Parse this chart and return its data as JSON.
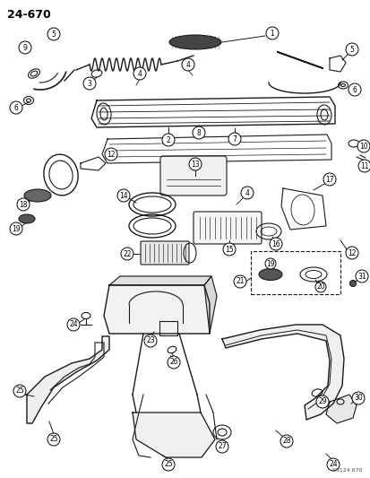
{
  "title": "24-670",
  "watermark": "95124 670",
  "background_color": "#ffffff",
  "line_color": "#1a1a1a",
  "fig_width": 4.14,
  "fig_height": 5.33,
  "dpi": 100
}
